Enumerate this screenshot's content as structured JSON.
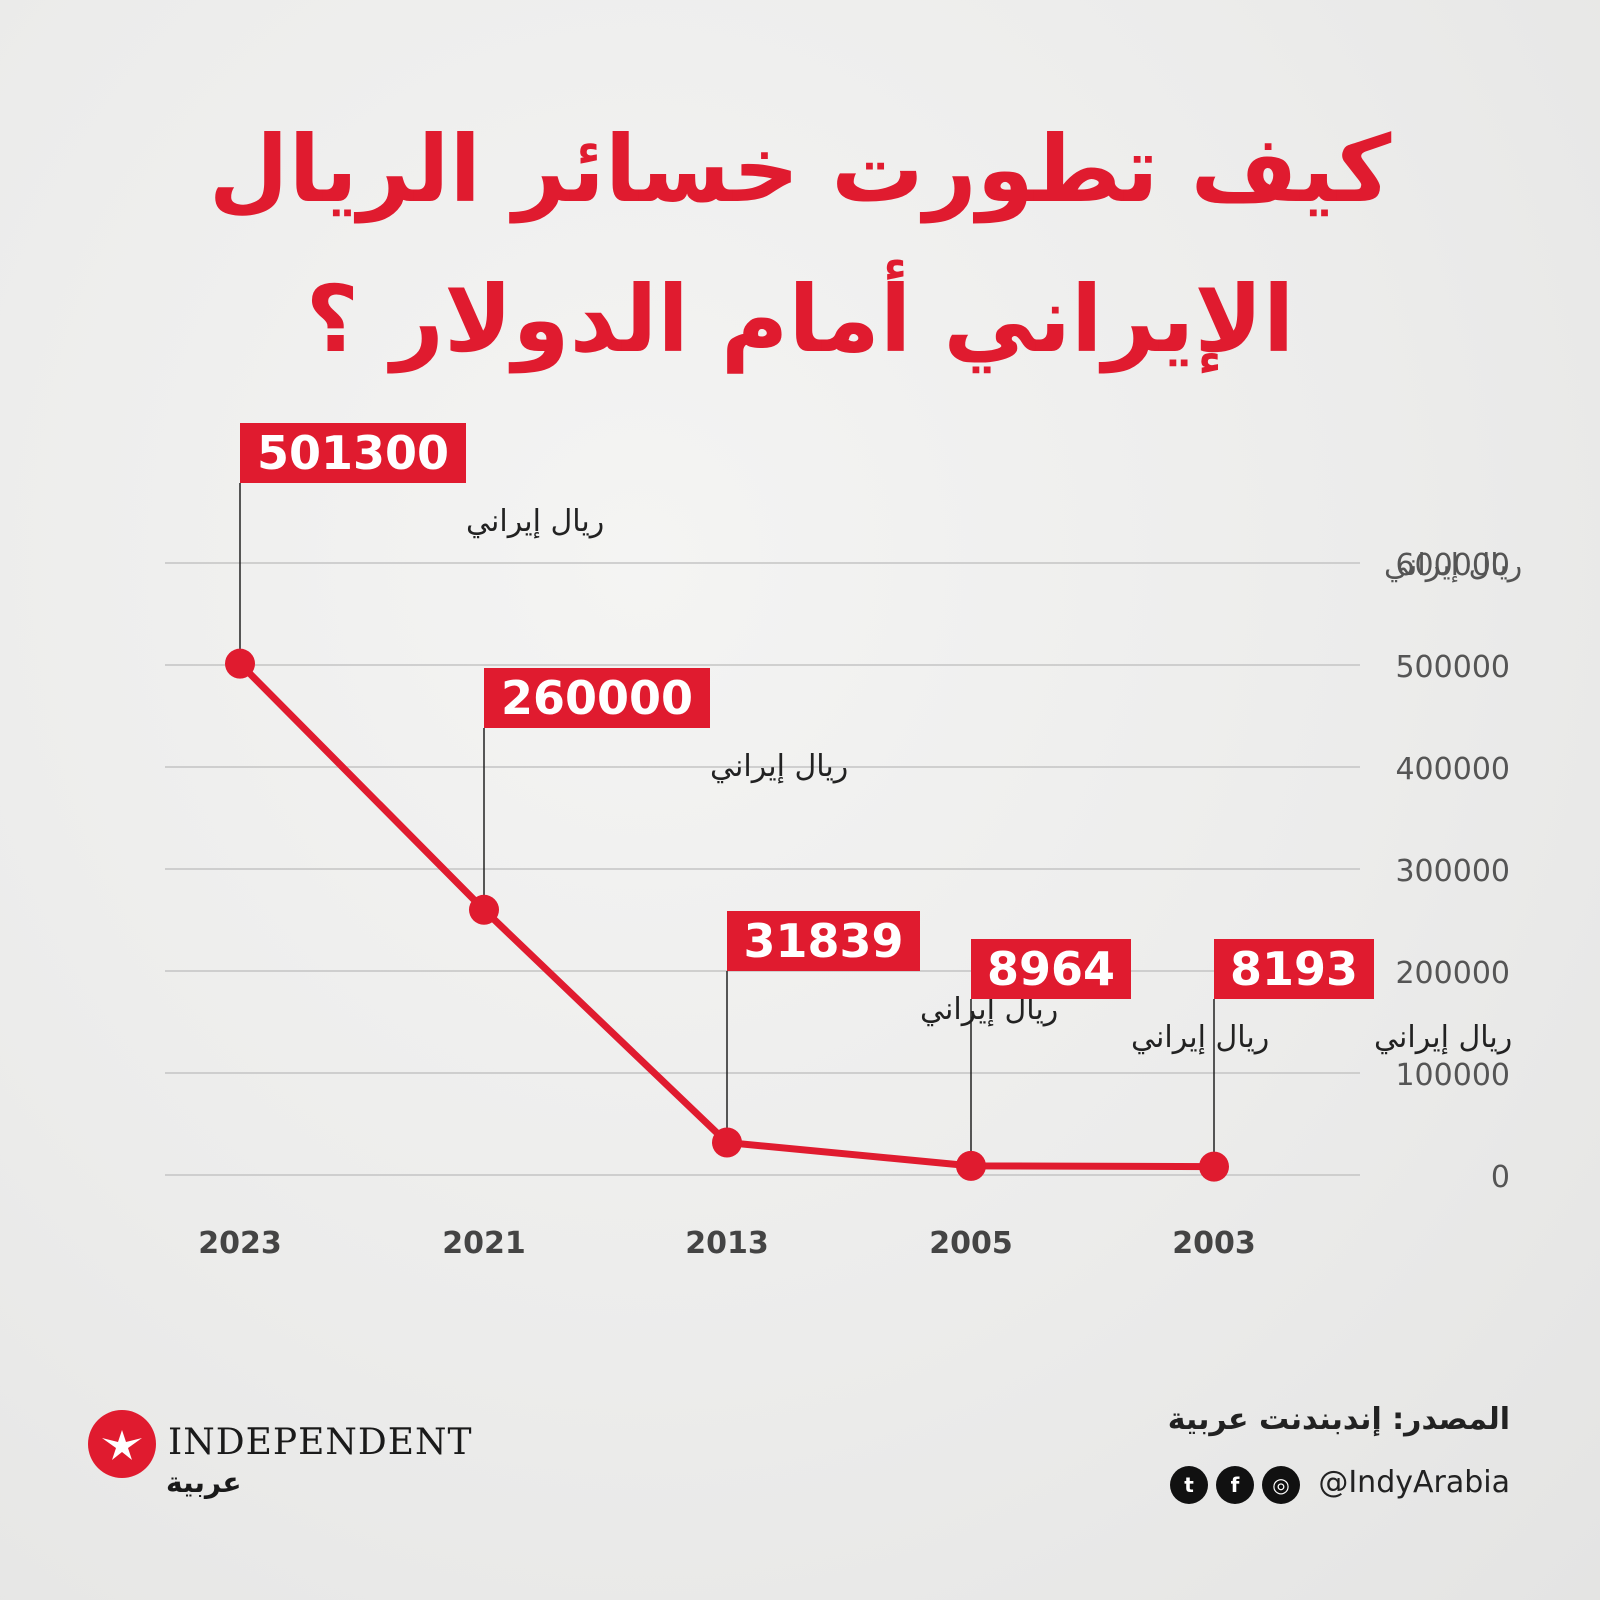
{
  "title": {
    "line1": "كيف تطورت خسائر الريال",
    "line2": "الإيراني أمام الدولار ؟"
  },
  "chart_data": {
    "type": "line",
    "x": [
      "2023",
      "2021",
      "2013",
      "2005",
      "2003"
    ],
    "values": [
      501300,
      260000,
      31839,
      8964,
      8193
    ],
    "value_labels": [
      "501300",
      "260000",
      "31839",
      "8964",
      "8193"
    ],
    "unit_label": "ريال إيراني",
    "ylabel": "ريال إيراني",
    "ylim": [
      0,
      600000
    ],
    "yticks": [
      "600000",
      "500000",
      "400000",
      "300000",
      "200000",
      "100000",
      "0"
    ],
    "ytick_values": [
      600000,
      500000,
      400000,
      300000,
      200000,
      100000,
      0
    ],
    "grid": true,
    "line_color": "#e01b2f"
  },
  "footer": {
    "source": "المصدر: إندبندنت عربية",
    "handle": "@IndyArabia",
    "social_icons": [
      "twitter-icon",
      "facebook-icon",
      "instagram-icon"
    ]
  },
  "logo": {
    "wordmark": "INDEPENDENT",
    "subtitle": "عربية"
  }
}
